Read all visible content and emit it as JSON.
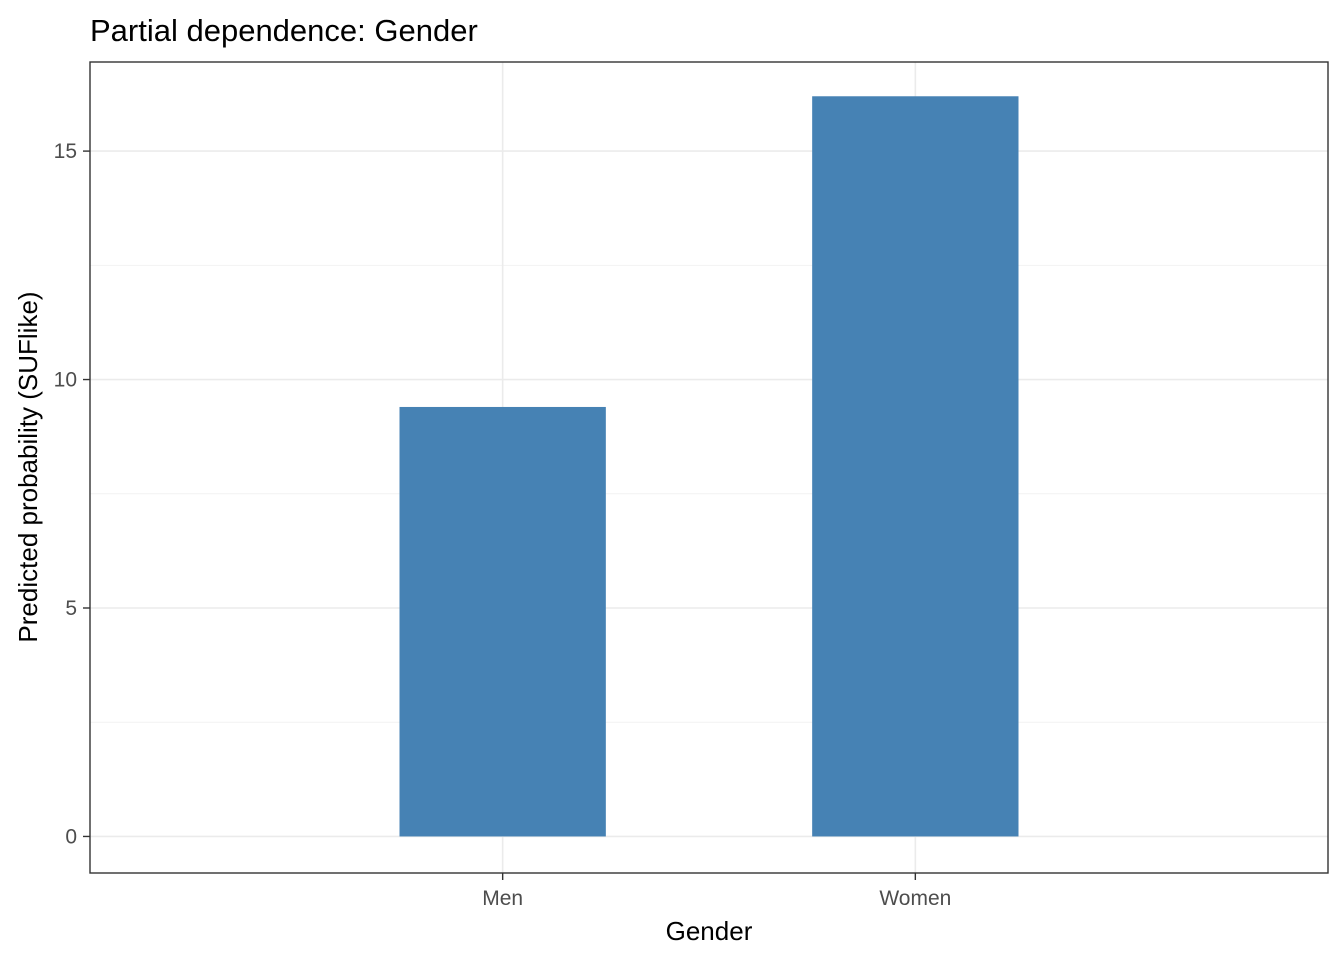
{
  "chart_data": {
    "type": "bar",
    "title": "Partial dependence: Gender",
    "xlabel": "Gender",
    "ylabel": "Predicted probability (SUFlike)",
    "categories": [
      "Men",
      "Women"
    ],
    "values": [
      9.4,
      16.2
    ],
    "ylim": [
      -0.8,
      16.95
    ],
    "yticks": [
      0,
      5,
      10,
      15
    ],
    "y_minor_ticks": [
      2.5,
      7.5,
      12.5
    ],
    "grid": true,
    "bar_color": "#4682B4",
    "legend": "none"
  }
}
